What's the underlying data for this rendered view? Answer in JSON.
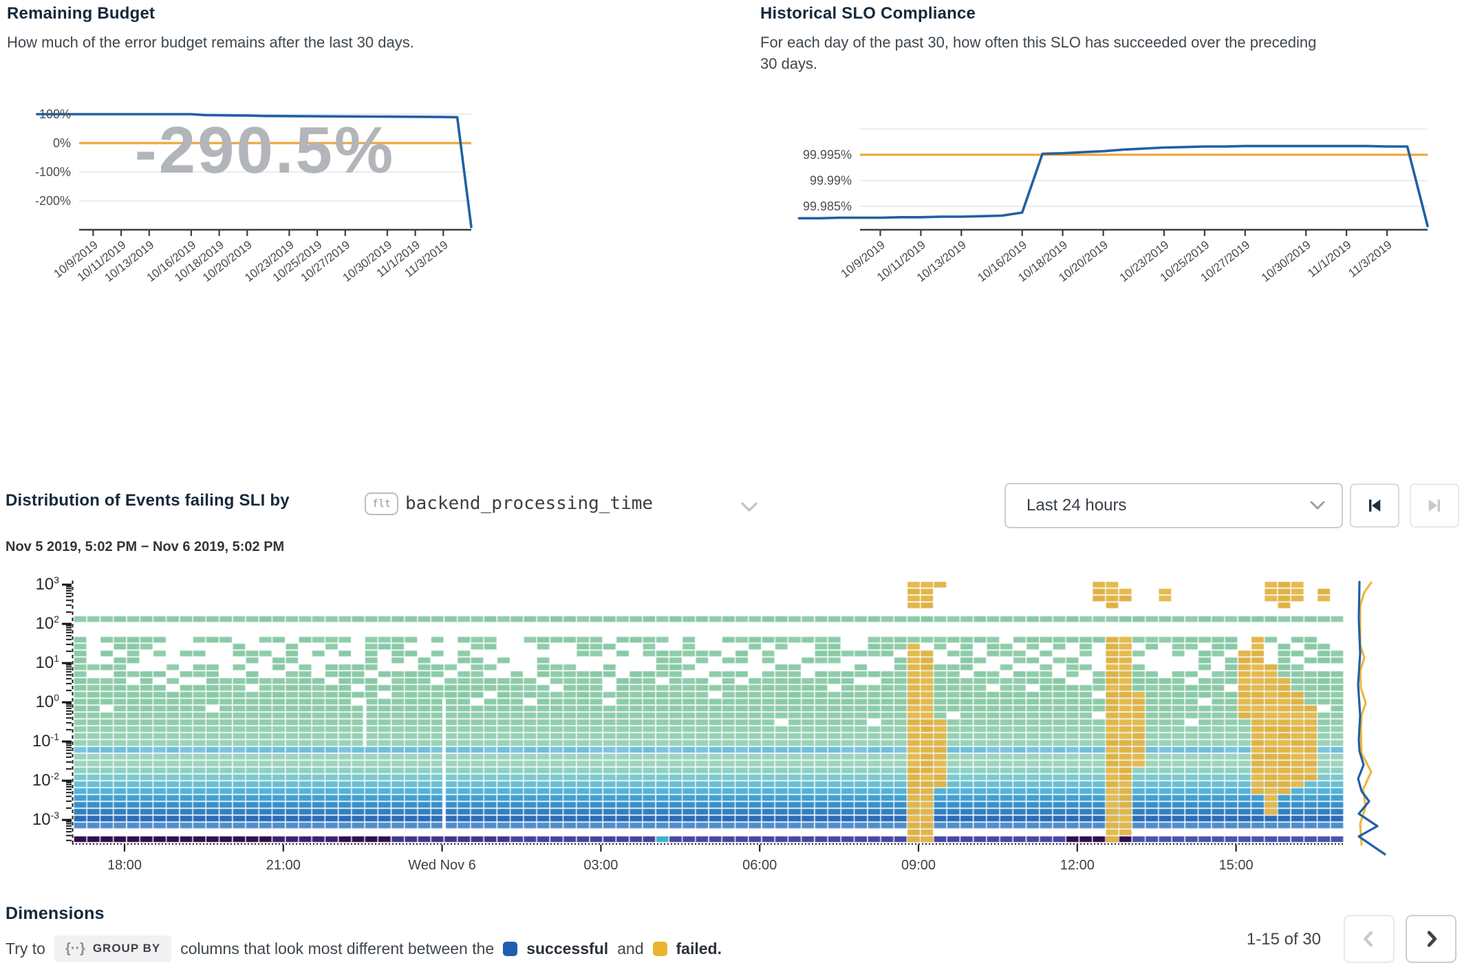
{
  "colors": {
    "series_blue": "#2160a4",
    "target_orange": "#efa63c",
    "watermark_gray": "#b2b5b9",
    "success_blue": "#1d5fad",
    "failed_yellow": "#eab52d",
    "spark_failed_yellow": "#edb73d",
    "heatmap_green": "#8ccba8",
    "heatmap_failed": "#e2b64a"
  },
  "budget": {
    "title": "Remaining Budget",
    "description": "How much of the error budget remains after the last 30 days.",
    "watermark": "-290.5%",
    "y_ticks": [
      "100%",
      "0%",
      "-100%",
      "-200%"
    ],
    "y_tick_values": [
      100,
      0,
      -100,
      -200
    ],
    "target": 0,
    "x_ticks": [
      "10/9/2019",
      "10/11/2019",
      "10/13/2019",
      "10/16/2019",
      "10/18/2019",
      "10/20/2019",
      "10/23/2019",
      "10/25/2019",
      "10/27/2019",
      "10/30/2019",
      "11/1/2019",
      "11/3/2019"
    ],
    "x_tick_days": [
      4,
      6,
      8,
      11,
      13,
      15,
      18,
      20,
      22,
      25,
      27,
      29
    ],
    "values": [
      100,
      100,
      100,
      100,
      100,
      100,
      100,
      100,
      100,
      100,
      100,
      100,
      97,
      96.3,
      95.8,
      95.4,
      94,
      93.6,
      93.3,
      93,
      92.7,
      92.4,
      92.1,
      91.9,
      91.6,
      91.4,
      91.1,
      90.9,
      90.6,
      90.2,
      89.6,
      -290.5
    ]
  },
  "compliance": {
    "title": "Historical SLO Compliance",
    "description_lines": [
      "For each day of the past 30, how often this SLO has succeeded over the preceding",
      "30 days."
    ],
    "y_ticks": [
      "99.995%",
      "99.99%",
      "99.985%"
    ],
    "y_tick_values": [
      99.995,
      99.99,
      99.985
    ],
    "gridline_values": [
      100.0,
      99.995,
      99.99,
      99.985
    ],
    "target": 99.995,
    "x_ticks": [
      "10/9/2019",
      "10/11/2019",
      "10/13/2019",
      "10/16/2019",
      "10/18/2019",
      "10/20/2019",
      "10/23/2019",
      "10/25/2019",
      "10/27/2019",
      "10/30/2019",
      "11/1/2019",
      "11/3/2019"
    ],
    "x_tick_days": [
      4,
      6,
      8,
      11,
      13,
      15,
      18,
      20,
      22,
      25,
      27,
      29
    ],
    "values": [
      99.9827,
      99.9827,
      99.9828,
      99.9828,
      99.9828,
      99.9829,
      99.9829,
      99.983,
      99.983,
      99.9831,
      99.9832,
      99.9838,
      99.9952,
      99.9953,
      99.9955,
      99.9957,
      99.996,
      99.9962,
      99.9964,
      99.9965,
      99.9966,
      99.9966,
      99.9967,
      99.9967,
      99.9967,
      99.9967,
      99.9967,
      99.9967,
      99.9967,
      99.9966,
      99.9966,
      99.9812
    ]
  },
  "distribution": {
    "title": "Distribution of Events failing SLI by",
    "field_badge": "flt",
    "field_name": "backend_processing_time",
    "time_range": "Last 24 hours",
    "date_range": "Nov 5 2019, 5:02 PM − Nov 6 2019, 5:02 PM",
    "x_ticks": [
      "18:00",
      "21:00",
      "Wed Nov 6",
      "03:00",
      "06:00",
      "09:00",
      "12:00",
      "15:00"
    ],
    "y_exponents": [
      3,
      2,
      1,
      0,
      -1,
      -2,
      -3
    ],
    "heatmap": {
      "cols": 96,
      "rows": 38,
      "seed": 20191105,
      "green_shades": [
        "#8ccba8",
        "#90cdab",
        "#89c9a6"
      ],
      "green_gradient": [
        "#8ccba8",
        "#8ecca9",
        "#90cdab",
        "#92ceae",
        "#94d0b1",
        "#96d1b4",
        "#98d2b6"
      ],
      "failed_shades": [
        "#e2b64a",
        "#e5ba4e",
        "#dfb245"
      ],
      "bands": [
        {
          "type": "solid",
          "row0": 5,
          "row1": 5,
          "palette": "green"
        },
        {
          "type": "speckle",
          "row0": 8,
          "row1": 16,
          "density": [
            0.78,
            0.5,
            0.42,
            0.45,
            0.55,
            0.66,
            0.78,
            0.9,
            0.97
          ]
        },
        {
          "type": "solid",
          "row0": 17,
          "row1": 23,
          "palette": "green_gradient",
          "holes": [
            0.05,
            0.04,
            0.02,
            0.01,
            0.006,
            0.004,
            0.004
          ]
        },
        {
          "type": "solid",
          "row0": 24,
          "row1": 24,
          "color": "#6fbedd",
          "alt_color": "#7cc3de"
        },
        {
          "type": "solid",
          "row0": 25,
          "row1": 26,
          "color": "#9dd4bd"
        },
        {
          "type": "solid",
          "row0": 27,
          "row1": 27,
          "color": "#8fd0c4"
        },
        {
          "type": "solid",
          "row0": 28,
          "row1": 28,
          "color": "#7cc8cd"
        },
        {
          "type": "solid",
          "row0": 29,
          "row1": 29,
          "color": "#65bfd6"
        },
        {
          "type": "solid",
          "row0": 30,
          "row1": 30,
          "color": "#52b2d8"
        },
        {
          "type": "solid",
          "row0": 31,
          "row1": 31,
          "color": "#429fd0"
        },
        {
          "type": "solid",
          "row0": 32,
          "row1": 32,
          "color": "#3890c9"
        },
        {
          "type": "solid",
          "row0": 33,
          "row1": 33,
          "color": "#3080c0"
        },
        {
          "type": "solid",
          "row0": 34,
          "row1": 34,
          "color": "#2a6db8"
        },
        {
          "type": "solid",
          "row0": 35,
          "row1": 35,
          "color": "#4f8ec9"
        }
      ],
      "bottom_row": 37,
      "bottom_segments": [
        [
          0,
          15,
          "#2e0f50"
        ],
        [
          15,
          20,
          "#392173"
        ],
        [
          20,
          24,
          "#2e0f50"
        ],
        [
          24,
          33,
          "#3f3590"
        ],
        [
          33,
          44,
          "#44429f"
        ],
        [
          44,
          45,
          "#3fb0d0"
        ],
        [
          45,
          75,
          "#4547a5"
        ],
        [
          75,
          80,
          "#2c0e4e"
        ],
        [
          80,
          96,
          "#4753ad"
        ]
      ],
      "gap_columns": [
        {
          "col": 22,
          "from": 17,
          "to": 23
        },
        {
          "col": 28,
          "from": 17,
          "to": 35
        }
      ],
      "failed_cells": [
        {
          "col": 63,
          "runs": [
            [
              0,
              0
            ],
            [
              1,
              3
            ],
            [
              9,
              37
            ]
          ]
        },
        {
          "col": 64,
          "runs": [
            [
              0,
              3
            ],
            [
              10,
              37
            ]
          ]
        },
        {
          "col": 65,
          "runs": [
            [
              0,
              0
            ],
            [
              20,
              29
            ]
          ]
        },
        {
          "col": 77,
          "runs": [
            [
              0,
              2
            ]
          ]
        },
        {
          "col": 78,
          "runs": [
            [
              0,
              3
            ],
            [
              8,
              37
            ]
          ]
        },
        {
          "col": 79,
          "runs": [
            [
              1,
              2
            ],
            [
              8,
              36
            ]
          ]
        },
        {
          "col": 80,
          "runs": [
            [
              16,
              26
            ]
          ]
        },
        {
          "col": 82,
          "runs": [
            [
              1,
              2
            ]
          ]
        },
        {
          "col": 88,
          "runs": [
            [
              10,
              19
            ]
          ]
        },
        {
          "col": 89,
          "runs": [
            [
              8,
              30
            ]
          ]
        },
        {
          "col": 90,
          "runs": [
            [
              0,
              2
            ],
            [
              12,
              33
            ]
          ]
        },
        {
          "col": 91,
          "runs": [
            [
              0,
              3
            ],
            [
              14,
              30
            ]
          ]
        },
        {
          "col": 92,
          "runs": [
            [
              0,
              2
            ],
            [
              16,
              29
            ]
          ]
        },
        {
          "col": 93,
          "runs": [
            [
              18,
              28
            ]
          ]
        },
        {
          "col": 94,
          "runs": [
            [
              1,
              2
            ]
          ]
        }
      ]
    },
    "marginals": {
      "successful": [
        [
          1976,
          846
        ],
        [
          1975,
          900
        ],
        [
          1977,
          950
        ],
        [
          1974,
          995
        ],
        [
          1977,
          1040
        ],
        [
          1975,
          1075
        ],
        [
          1976,
          1092
        ],
        [
          1982,
          1112
        ],
        [
          1974,
          1132
        ],
        [
          1979,
          1150
        ],
        [
          1990,
          1165
        ],
        [
          1975,
          1183
        ],
        [
          2002,
          1201
        ],
        [
          1975,
          1216
        ],
        [
          2013,
          1242
        ]
      ],
      "failed": [
        [
          1993,
          847
        ],
        [
          1983,
          861
        ],
        [
          1977,
          880
        ],
        [
          1977,
          915
        ],
        [
          1977,
          938
        ],
        [
          1983,
          956
        ],
        [
          1977,
          976
        ],
        [
          1978,
          1000
        ],
        [
          1985,
          1022
        ],
        [
          1979,
          1040
        ],
        [
          1978,
          1062
        ],
        [
          1979,
          1095
        ],
        [
          1993,
          1122
        ],
        [
          1981,
          1148
        ],
        [
          1985,
          1172
        ],
        [
          1977,
          1198
        ],
        [
          1979,
          1228
        ]
      ]
    }
  },
  "dimensions": {
    "heading": "Dimensions",
    "hint_prefix": "Try to",
    "group_by_icon": "{··}",
    "group_by": "GROUP BY",
    "hint_body": "columns that look most different between the",
    "success_label": "successful",
    "conjunction": "and",
    "failed_label": "failed",
    "period": ".",
    "pagination": "1-15 of 30"
  }
}
